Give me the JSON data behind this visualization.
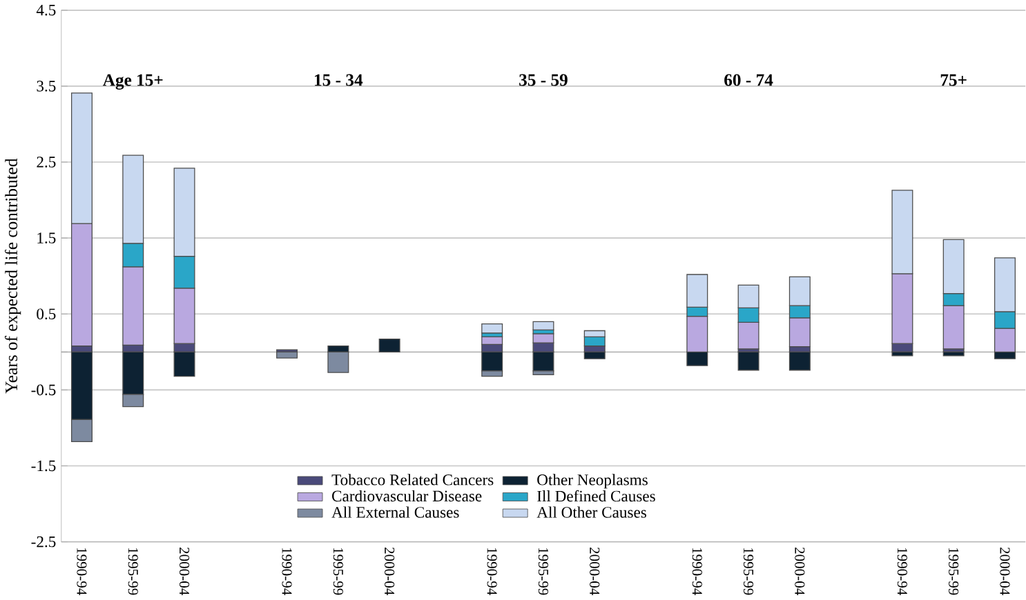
{
  "chart_data": {
    "type": "bar",
    "stacked": true,
    "ylabel": "Years of expected life contributed",
    "categories": [
      "1990-94",
      "1995-99",
      "2000-04",
      null,
      "1990-94",
      "1995-99",
      "2000-04",
      null,
      "1990-94",
      "1995-99",
      "2000-04",
      null,
      "1990-94",
      "1995-99",
      "2000-04",
      null,
      "1990-94",
      "1995-99",
      "2000-04"
    ],
    "annotations": [
      "Age 15+",
      "15 - 34",
      "35 - 59",
      "60 - 74",
      "75+"
    ],
    "ylim": [
      -2.5,
      4.5
    ],
    "yticks": [
      -2.5,
      -1.5,
      -0.5,
      0.5,
      1.5,
      2.5,
      3.5,
      4.5
    ],
    "grid": "y",
    "legend": "bottom",
    "series": [
      {
        "name": "Tobacco Related Cancers",
        "color": "#4a4a7a",
        "values": [
          0.08,
          0.09,
          0.11,
          null,
          0.03,
          null,
          null,
          null,
          0.1,
          0.12,
          0.08,
          null,
          null,
          0.04,
          0.07,
          null,
          0.11,
          0.04,
          null
        ]
      },
      {
        "name": "Other Neoplasms",
        "color": "#0d2233",
        "values": [
          -0.89,
          -0.56,
          -0.32,
          null,
          null,
          0.08,
          0.17,
          null,
          -0.25,
          -0.25,
          -0.09,
          null,
          -0.18,
          -0.24,
          -0.24,
          null,
          -0.05,
          -0.05,
          -0.09
        ]
      },
      {
        "name": "Cardiovascular Disease",
        "color": "#b9a8e0",
        "values": [
          1.61,
          1.03,
          0.73,
          null,
          null,
          null,
          null,
          null,
          0.1,
          0.12,
          null,
          null,
          0.47,
          0.35,
          0.38,
          null,
          0.92,
          0.57,
          0.31
        ]
      },
      {
        "name": "Ill Defined Causes",
        "color": "#2aa6c8",
        "values": [
          null,
          0.31,
          0.42,
          null,
          null,
          null,
          null,
          null,
          0.05,
          0.05,
          0.12,
          null,
          0.12,
          0.19,
          0.16,
          null,
          null,
          0.16,
          0.22
        ]
      },
      {
        "name": "All External Causes",
        "color": "#7d8aa0",
        "values": [
          -0.29,
          -0.16,
          null,
          null,
          -0.08,
          -0.27,
          null,
          null,
          -0.07,
          -0.05,
          null,
          null,
          null,
          null,
          null,
          null,
          null,
          null,
          null
        ]
      },
      {
        "name": "All Other Causes",
        "color": "#c8d8f0",
        "values": [
          1.72,
          1.16,
          1.16,
          null,
          null,
          null,
          null,
          null,
          0.12,
          0.11,
          0.08,
          null,
          0.43,
          0.3,
          0.38,
          null,
          1.1,
          0.71,
          0.71
        ]
      }
    ]
  }
}
